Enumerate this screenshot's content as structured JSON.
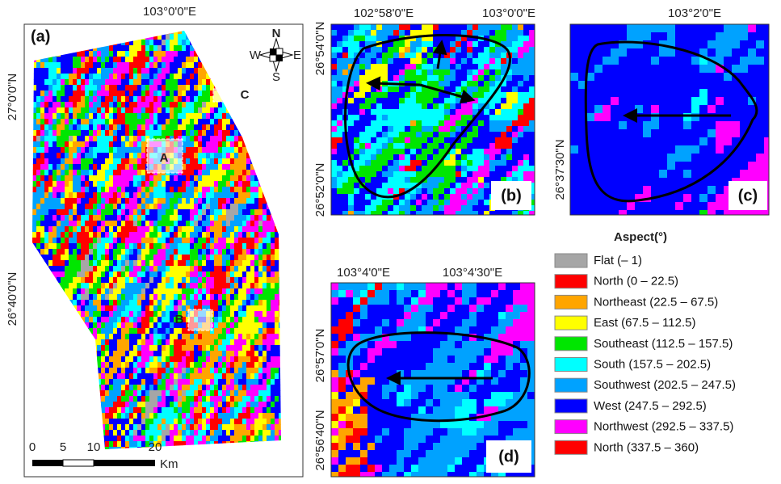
{
  "panel_a": {
    "label": "(a)",
    "lon_ticks": [
      "103°0'0\"E"
    ],
    "lat_ticks": [
      "27°0'0\"N",
      "26°40'0\"N"
    ],
    "compass": {
      "n": "N",
      "e": "E",
      "s": "S",
      "w": "W"
    },
    "sites": [
      "A",
      "B",
      "C"
    ],
    "scale_bar": {
      "ticks": [
        "0",
        "5",
        "10",
        "20"
      ],
      "unit": "Km"
    }
  },
  "panel_b": {
    "label": "(b)",
    "lon_ticks": [
      "102°58'0\"E",
      "103°0'0\"E"
    ],
    "lat_ticks": [
      "26°54'0\"N",
      "26°52'0\"N"
    ]
  },
  "panel_c": {
    "label": "(c)",
    "lon_ticks": [
      "103°2'0\"E"
    ],
    "lat_ticks": [
      "26°37'30\"N"
    ]
  },
  "panel_d": {
    "label": "(d)",
    "lon_ticks": [
      "103°4'0\"E",
      "103°4'30\"E"
    ],
    "lat_ticks": [
      "26°57'0\"N",
      "26°56'40\"N"
    ]
  },
  "legend": {
    "title": "Aspect(°)",
    "items": [
      {
        "label": "Flat (– 1)",
        "color": "#a6a6a6"
      },
      {
        "label": "North (0 – 22.5)",
        "color": "#ff0000"
      },
      {
        "label": "Northeast (22.5 – 67.5)",
        "color": "#ffa500"
      },
      {
        "label": "East (67.5 – 112.5)",
        "color": "#ffff00"
      },
      {
        "label": "Southeast (112.5 – 157.5)",
        "color": "#00e600"
      },
      {
        "label": "South (157.5 – 202.5)",
        "color": "#00ffff"
      },
      {
        "label": "Southwest (202.5 – 247.5)",
        "color": "#00a2ff"
      },
      {
        "label": "West (247.5 – 292.5)",
        "color": "#0000ff"
      },
      {
        "label": "Northwest (292.5 – 337.5)",
        "color": "#ff00ff"
      },
      {
        "label": "North (337.5 – 360)",
        "color": "#ff0000"
      }
    ]
  }
}
